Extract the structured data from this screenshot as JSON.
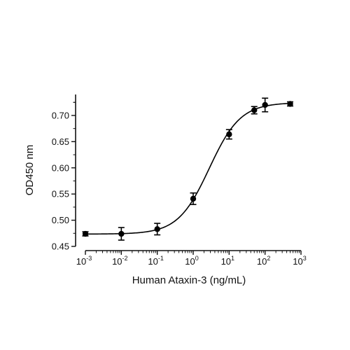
{
  "chart_data": {
    "type": "scatter",
    "title": "",
    "xlabel": "Human Ataxin-3 (ng/mL)",
    "ylabel": "OD450 nm",
    "x_scale": "log",
    "xlim": [
      0.001,
      1000
    ],
    "ylim": [
      0.45,
      0.74
    ],
    "x_ticks": [
      {
        "base": "10",
        "exp": "-3",
        "value": 0.001
      },
      {
        "base": "10",
        "exp": "-2",
        "value": 0.01
      },
      {
        "base": "10",
        "exp": "-1",
        "value": 0.1
      },
      {
        "base": "10",
        "exp": "0",
        "value": 1
      },
      {
        "base": "10",
        "exp": "1",
        "value": 10
      },
      {
        "base": "10",
        "exp": "2",
        "value": 100
      },
      {
        "base": "10",
        "exp": "3",
        "value": 1000
      }
    ],
    "y_ticks": [
      {
        "label": "0.45",
        "value": 0.45
      },
      {
        "label": "0.50",
        "value": 0.5
      },
      {
        "label": "0.55",
        "value": 0.55
      },
      {
        "label": "0.60",
        "value": 0.6
      },
      {
        "label": "0.65",
        "value": 0.65
      },
      {
        "label": "0.70",
        "value": 0.7
      }
    ],
    "grid": false,
    "legend": "none",
    "marker_color": "#000000",
    "points": [
      {
        "x": 0.001,
        "y": 0.474,
        "err": 0.004
      },
      {
        "x": 0.01,
        "y": 0.474,
        "err": 0.012
      },
      {
        "x": 0.1,
        "y": 0.483,
        "err": 0.011
      },
      {
        "x": 1,
        "y": 0.541,
        "err": 0.011
      },
      {
        "x": 10,
        "y": 0.664,
        "err": 0.009
      },
      {
        "x": 50,
        "y": 0.71,
        "err": 0.007
      },
      {
        "x": 100,
        "y": 0.72,
        "err": 0.013
      },
      {
        "x": 500,
        "y": 0.722,
        "err": 0.004
      }
    ],
    "fit_curve": {
      "model": "4PL",
      "bottom": 0.4735,
      "top": 0.7245,
      "ec50": 2.8,
      "hill": 1.0
    }
  }
}
